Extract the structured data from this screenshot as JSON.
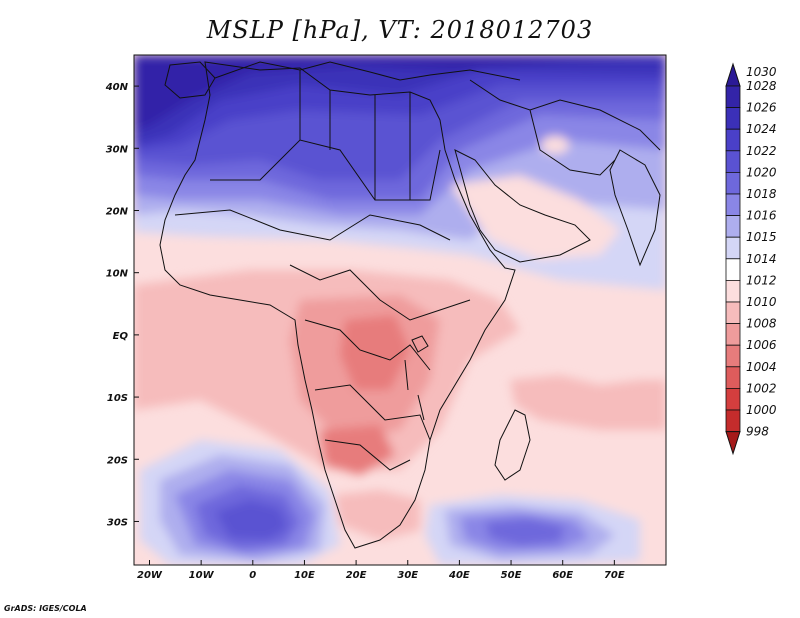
{
  "title": "MSLP [hPa], VT: 2018012703",
  "credit": "GrADS: IGES/COLA",
  "map": {
    "projection": "latlon",
    "lon_range": [
      -23,
      80
    ],
    "lat_range": [
      -37,
      45
    ],
    "lon_ticks": [
      {
        "value": -20,
        "label": "20W"
      },
      {
        "value": -10,
        "label": "10W"
      },
      {
        "value": 0,
        "label": "0"
      },
      {
        "value": 10,
        "label": "10E"
      },
      {
        "value": 20,
        "label": "20E"
      },
      {
        "value": 30,
        "label": "30E"
      },
      {
        "value": 40,
        "label": "40E"
      },
      {
        "value": 50,
        "label": "50E"
      },
      {
        "value": 60,
        "label": "60E"
      },
      {
        "value": 70,
        "label": "70E"
      }
    ],
    "lat_ticks": [
      {
        "value": 40,
        "label": "40N"
      },
      {
        "value": 30,
        "label": "30N"
      },
      {
        "value": 20,
        "label": "20N"
      },
      {
        "value": 10,
        "label": "10N"
      },
      {
        "value": 0,
        "label": "EQ"
      },
      {
        "value": -10,
        "label": "10S"
      },
      {
        "value": -20,
        "label": "20S"
      },
      {
        "value": -30,
        "label": "30S"
      }
    ]
  },
  "colorbar": {
    "levels": [
      {
        "label": "1030",
        "color": "#2b1a96"
      },
      {
        "label": "1028",
        "color": "#3324a8"
      },
      {
        "label": "1026",
        "color": "#3b30b8"
      },
      {
        "label": "1024",
        "color": "#4a40c8"
      },
      {
        "label": "1022",
        "color": "#5a52d2"
      },
      {
        "label": "1020",
        "color": "#6e68dc"
      },
      {
        "label": "1018",
        "color": "#8a86e6"
      },
      {
        "label": "1016",
        "color": "#aeaeee"
      },
      {
        "label": "1015",
        "color": "#d4d6f6"
      },
      {
        "label": "1014",
        "color": "#ffffff"
      },
      {
        "label": "1012",
        "color": "#fcdede"
      },
      {
        "label": "1010",
        "color": "#f6bcbc"
      },
      {
        "label": "1008",
        "color": "#ef9c9c"
      },
      {
        "label": "1006",
        "color": "#e77c7c"
      },
      {
        "label": "1004",
        "color": "#de5c5c"
      },
      {
        "label": "1002",
        "color": "#d43e3e"
      },
      {
        "label": "1000",
        "color": "#c42c2c"
      },
      {
        "label": "998",
        "color": "#a51a1a"
      }
    ]
  }
}
